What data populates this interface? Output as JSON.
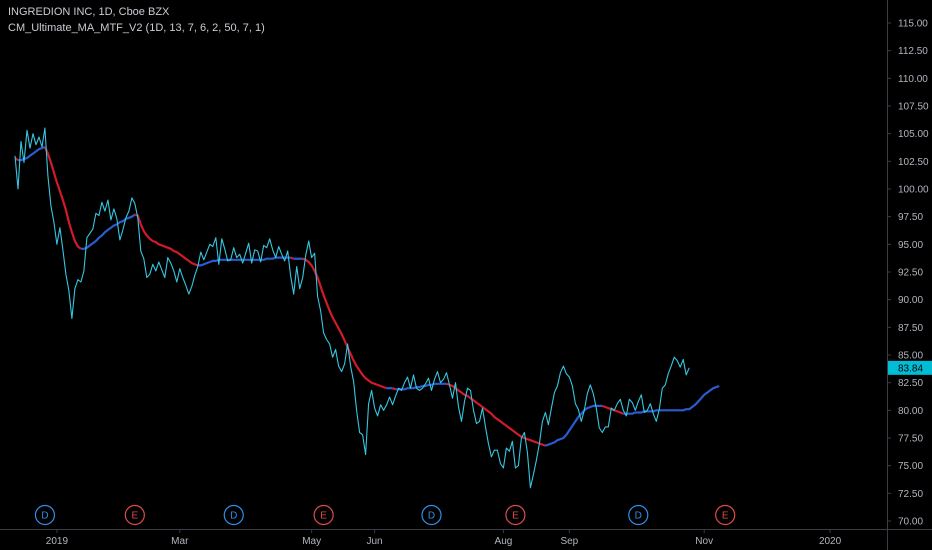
{
  "legend": {
    "symbol": "INGREDION INC, 1D, Cboe BZX",
    "indicator": "CM_Ultimate_MA_MTF_V2 (1D, 13, 7, 6, 2, 50, 7, 1)"
  },
  "colors": {
    "background": "#000000",
    "price_line": "#36c6e0",
    "ma_down": "#d11a2a",
    "ma_up": "#2a5cd1",
    "axis_text": "#b2b5be",
    "axis_line": "#3a3d45",
    "price_tag": "#00bcd4",
    "dividend": "#2f8fe8",
    "earnings": "#e04a4a"
  },
  "price_tag": "83.84",
  "chart_data": {
    "type": "line",
    "title": "INGREDION INC, 1D, Cboe BZX",
    "ylim": [
      70.0,
      116.0
    ],
    "y_ticks": [
      "70.00",
      "72.50",
      "75.00",
      "77.50",
      "80.00",
      "82.50",
      "85.00",
      "87.50",
      "90.00",
      "92.50",
      "95.00",
      "97.50",
      "100.00",
      "102.50",
      "105.00",
      "107.50",
      "110.00",
      "112.50",
      "115.00"
    ],
    "x_ticks": [
      {
        "label": "2019",
        "bar": 14
      },
      {
        "label": "Mar",
        "bar": 55
      },
      {
        "label": "May",
        "bar": 99
      },
      {
        "label": "Jun",
        "bar": 120
      },
      {
        "label": "Aug",
        "bar": 163
      },
      {
        "label": "Sep",
        "bar": 185
      },
      {
        "label": "Nov",
        "bar": 230
      },
      {
        "label": "2020",
        "bar": 272
      }
    ],
    "x_range": [
      -5,
      291
    ],
    "series": [
      {
        "key": "price",
        "values": [
          103.0,
          100.0,
          104.3,
          102.4,
          105.3,
          103.7,
          105.0,
          104.0,
          104.7,
          103.8,
          105.5,
          101.2,
          98.5,
          97.0,
          95.0,
          96.5,
          94.5,
          92.3,
          90.8,
          88.3,
          91.0,
          91.8,
          91.6,
          92.6,
          95.6,
          96.0,
          96.4,
          97.8,
          97.6,
          98.8,
          98.0,
          99.0,
          97.2,
          98.2,
          97.3,
          95.4,
          96.3,
          97.4,
          98.0,
          99.2,
          98.7,
          97.4,
          94.4,
          93.7,
          92.0,
          92.3,
          93.2,
          92.6,
          93.4,
          92.7,
          92.0,
          93.8,
          93.3,
          92.6,
          91.6,
          92.8,
          92.0,
          91.3,
          90.5,
          91.2,
          92.2,
          93.0,
          94.3,
          93.6,
          94.3,
          95.0,
          94.8,
          95.6,
          93.2,
          95.5,
          94.6,
          93.5,
          93.6,
          94.7,
          93.8,
          94.1,
          93.3,
          94.2,
          95.1,
          93.3,
          94.5,
          94.4,
          93.4,
          94.9,
          94.7,
          95.5,
          94.5,
          93.8,
          94.8,
          94.1,
          93.5,
          94.4,
          92.1,
          90.5,
          93.0,
          91.0,
          92.0,
          94.0,
          95.3,
          93.8,
          94.2,
          90.3,
          89.0,
          87.0,
          86.4,
          86.0,
          84.8,
          85.5,
          84.0,
          83.5,
          84.2,
          86.0,
          84.0,
          82.6,
          80.0,
          78.0,
          77.8,
          76.0,
          80.6,
          81.8,
          80.2,
          79.5,
          80.5,
          80.0,
          80.5,
          81.2,
          80.5,
          81.3,
          82.0,
          81.8,
          82.5,
          83.0,
          82.0,
          83.2,
          82.0,
          81.8,
          82.0,
          82.4,
          82.9,
          81.8,
          82.8,
          83.5,
          82.5,
          82.8,
          83.4,
          82.3,
          81.1,
          82.5,
          80.3,
          79.0,
          80.8,
          82.0,
          81.8,
          80.0,
          78.8,
          79.0,
          80.2,
          78.5,
          77.0,
          75.8,
          76.4,
          76.4,
          75.2,
          74.8,
          76.6,
          76.3,
          77.2,
          74.8,
          75.0,
          77.5,
          78.0,
          76.2,
          73.0,
          74.2,
          75.5,
          77.0,
          79.0,
          79.8,
          78.7,
          80.2,
          81.6,
          82.2,
          83.4,
          84.0,
          83.3,
          83.0,
          82.2,
          80.6,
          80.1,
          79.0,
          80.0,
          81.5,
          82.3,
          81.5,
          80.2,
          78.4,
          78.0,
          78.5,
          78.5,
          80.2,
          80.0,
          80.6,
          81.0,
          80.0,
          79.5,
          81.0,
          80.7,
          80.0,
          80.8,
          81.4,
          79.8,
          80.0,
          80.6,
          79.7,
          79.0,
          80.1,
          82.0,
          82.3,
          83.3,
          84.0,
          84.8,
          84.5,
          83.9,
          84.6,
          83.2,
          83.84
        ]
      },
      {
        "key": "ma",
        "values": [
          102.8,
          102.6,
          102.6,
          102.7,
          102.8,
          103.0,
          103.2,
          103.4,
          103.6,
          103.7,
          103.8,
          103.2,
          102.4,
          101.5,
          100.6,
          99.8,
          99.0,
          98.1,
          97.0,
          96.1,
          95.3,
          94.8,
          94.6,
          94.6,
          94.7,
          94.9,
          95.1,
          95.3,
          95.6,
          95.8,
          96.1,
          96.3,
          96.5,
          96.7,
          96.8,
          97.0,
          97.1,
          97.3,
          97.4,
          97.5,
          97.7,
          97.6,
          96.8,
          96.2,
          95.8,
          95.5,
          95.3,
          95.2,
          95.0,
          94.9,
          94.8,
          94.7,
          94.6,
          94.4,
          94.3,
          94.1,
          93.9,
          93.7,
          93.5,
          93.3,
          93.2,
          93.1,
          93.1,
          93.2,
          93.3,
          93.4,
          93.5,
          93.5,
          93.6,
          93.6,
          93.6,
          93.6,
          93.6,
          93.6,
          93.6,
          93.6,
          93.6,
          93.6,
          93.6,
          93.6,
          93.6,
          93.6,
          93.6,
          93.6,
          93.7,
          93.7,
          93.7,
          93.8,
          93.8,
          93.8,
          93.8,
          93.8,
          93.8,
          93.7,
          93.7,
          93.7,
          93.7,
          93.6,
          93.4,
          93.1,
          92.6,
          92.0,
          91.2,
          90.4,
          89.7,
          89.0,
          88.4,
          87.9,
          87.4,
          86.9,
          86.3,
          85.7,
          85.1,
          84.5,
          84.0,
          83.6,
          83.2,
          82.9,
          82.7,
          82.5,
          82.4,
          82.3,
          82.2,
          82.1,
          82.0,
          82.0,
          82.0,
          81.9,
          81.9,
          81.9,
          81.9,
          82.0,
          82.0,
          82.0,
          82.1,
          82.1,
          82.2,
          82.2,
          82.3,
          82.3,
          82.4,
          82.4,
          82.4,
          82.4,
          82.4,
          82.3,
          82.2,
          82.0,
          81.8,
          81.6,
          81.4,
          81.3,
          81.1,
          80.9,
          80.7,
          80.5,
          80.3,
          80.1,
          79.9,
          79.7,
          79.4,
          79.2,
          79.0,
          78.8,
          78.6,
          78.4,
          78.2,
          78.0,
          77.8,
          77.6,
          77.5,
          77.4,
          77.3,
          77.2,
          77.1,
          77.0,
          76.9,
          76.8,
          76.9,
          77.0,
          77.1,
          77.3,
          77.4,
          77.5,
          77.8,
          78.2,
          78.6,
          79.0,
          79.4,
          79.7,
          80.0,
          80.2,
          80.3,
          80.4,
          80.4,
          80.4,
          80.4,
          80.3,
          80.2,
          80.1,
          80.0,
          79.9,
          79.8,
          79.7,
          79.7,
          79.7,
          79.7,
          79.8,
          79.8,
          79.8,
          79.9,
          79.9,
          79.9,
          79.9,
          80.0,
          80.0,
          80.0,
          80.0,
          80.0,
          80.0,
          80.0,
          80.0,
          80.0,
          80.0,
          80.1,
          80.1,
          80.3,
          80.5,
          80.8,
          81.1,
          81.4,
          81.6,
          81.8,
          82.0,
          82.1,
          82.2
        ]
      }
    ],
    "events": [
      {
        "label": "D",
        "kind": "dividend",
        "bar": 10
      },
      {
        "label": "E",
        "kind": "earnings",
        "bar": 40
      },
      {
        "label": "D",
        "kind": "dividend",
        "bar": 73
      },
      {
        "label": "E",
        "kind": "earnings",
        "bar": 103
      },
      {
        "label": "D",
        "kind": "dividend",
        "bar": 139
      },
      {
        "label": "E",
        "kind": "earnings",
        "bar": 167
      },
      {
        "label": "D",
        "kind": "dividend",
        "bar": 208
      },
      {
        "label": "E",
        "kind": "earnings",
        "bar": 237
      }
    ],
    "last_value": 83.84,
    "legend_position": "top-left",
    "grid": false
  }
}
